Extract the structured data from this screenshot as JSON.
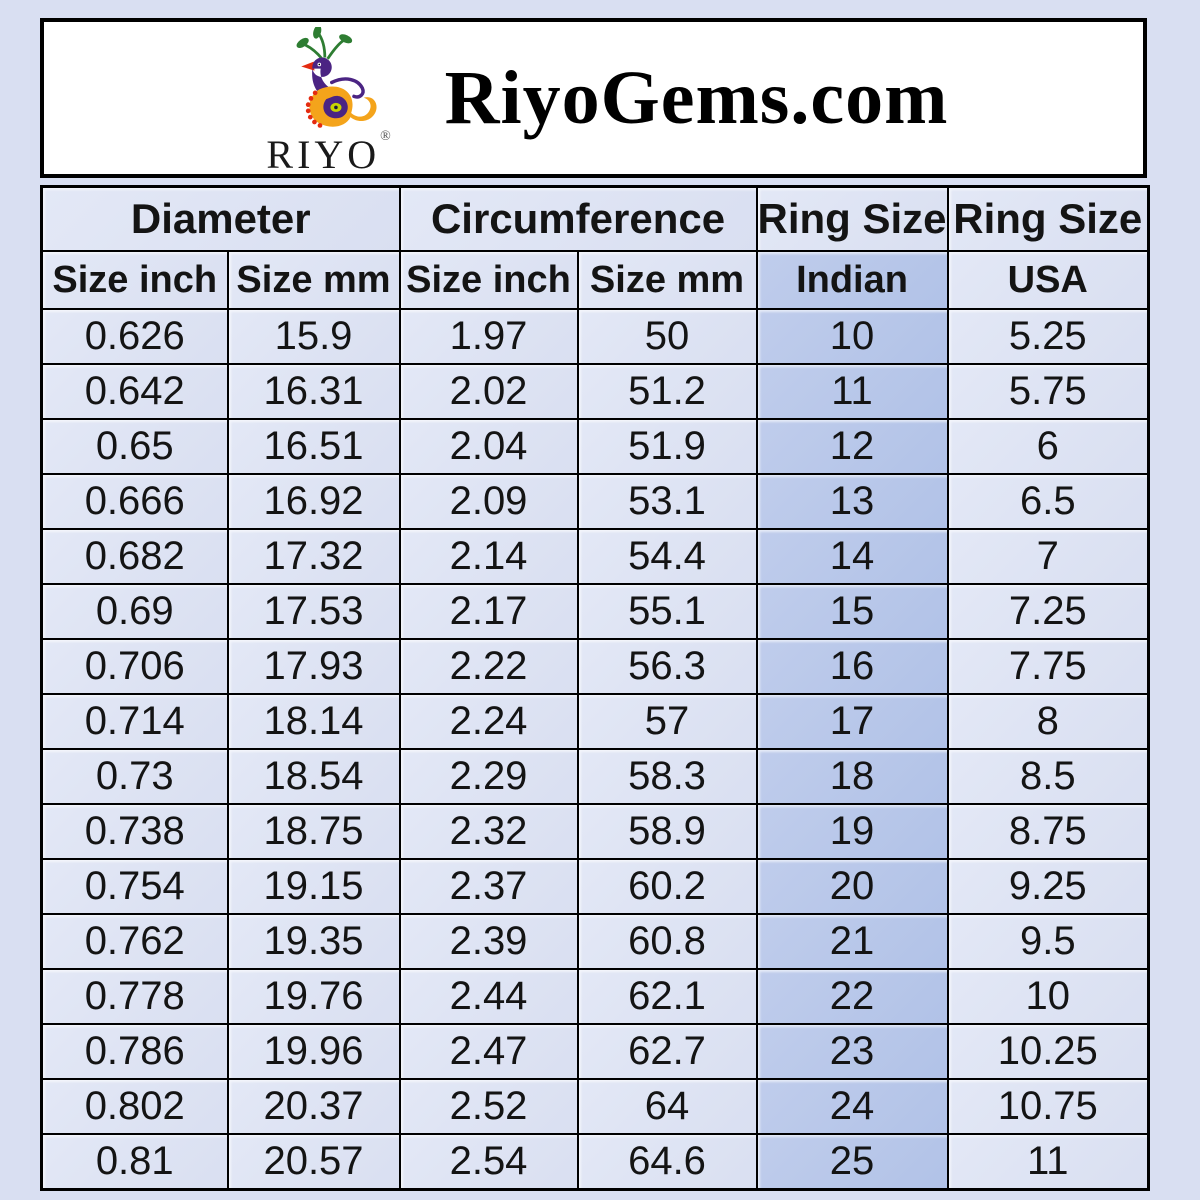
{
  "page": {
    "background_color": "#d9dff2"
  },
  "header": {
    "brand": "RiyoGems.com",
    "logo_text": "RIYO",
    "logo_reg_mark": "®",
    "logo_colors": {
      "purple": "#4b2483",
      "green": "#2e7d32",
      "orange": "#f4a41b",
      "red": "#e42b10",
      "eye_yellow": "#c8d400"
    }
  },
  "table": {
    "group_labels": [
      "Diameter",
      "Circumference",
      "Ring Size",
      "Ring Size"
    ],
    "subheaders": [
      "Size inch",
      "Size mm",
      "Size inch",
      "Size mm",
      "Indian",
      "USA"
    ],
    "highlight_column": "Indian",
    "colors": {
      "cell_bg": "#dde2f1",
      "indian_column_bg": "#b6c6e8",
      "border": "#000000",
      "text": "#141414"
    }
  },
  "chart_data": {
    "type": "table",
    "title": "RiyoGems.com ring size conversion chart",
    "columns": [
      "Diameter Size inch",
      "Diameter Size mm",
      "Circumference Size inch",
      "Circumference Size mm",
      "Ring Size Indian",
      "Ring Size USA"
    ],
    "rows": [
      [
        "0.626",
        "15.9",
        "1.97",
        "50",
        "10",
        "5.25"
      ],
      [
        "0.642",
        "16.31",
        "2.02",
        "51.2",
        "11",
        "5.75"
      ],
      [
        "0.65",
        "16.51",
        "2.04",
        "51.9",
        "12",
        "6"
      ],
      [
        "0.666",
        "16.92",
        "2.09",
        "53.1",
        "13",
        "6.5"
      ],
      [
        "0.682",
        "17.32",
        "2.14",
        "54.4",
        "14",
        "7"
      ],
      [
        "0.69",
        "17.53",
        "2.17",
        "55.1",
        "15",
        "7.25"
      ],
      [
        "0.706",
        "17.93",
        "2.22",
        "56.3",
        "16",
        "7.75"
      ],
      [
        "0.714",
        "18.14",
        "2.24",
        "57",
        "17",
        "8"
      ],
      [
        "0.73",
        "18.54",
        "2.29",
        "58.3",
        "18",
        "8.5"
      ],
      [
        "0.738",
        "18.75",
        "2.32",
        "58.9",
        "19",
        "8.75"
      ],
      [
        "0.754",
        "19.15",
        "2.37",
        "60.2",
        "20",
        "9.25"
      ],
      [
        "0.762",
        "19.35",
        "2.39",
        "60.8",
        "21",
        "9.5"
      ],
      [
        "0.778",
        "19.76",
        "2.44",
        "62.1",
        "22",
        "10"
      ],
      [
        "0.786",
        "19.96",
        "2.47",
        "62.7",
        "23",
        "10.25"
      ],
      [
        "0.802",
        "20.37",
        "2.52",
        "64",
        "24",
        "10.75"
      ],
      [
        "0.81",
        "20.57",
        "2.54",
        "64.6",
        "25",
        "11"
      ]
    ]
  }
}
